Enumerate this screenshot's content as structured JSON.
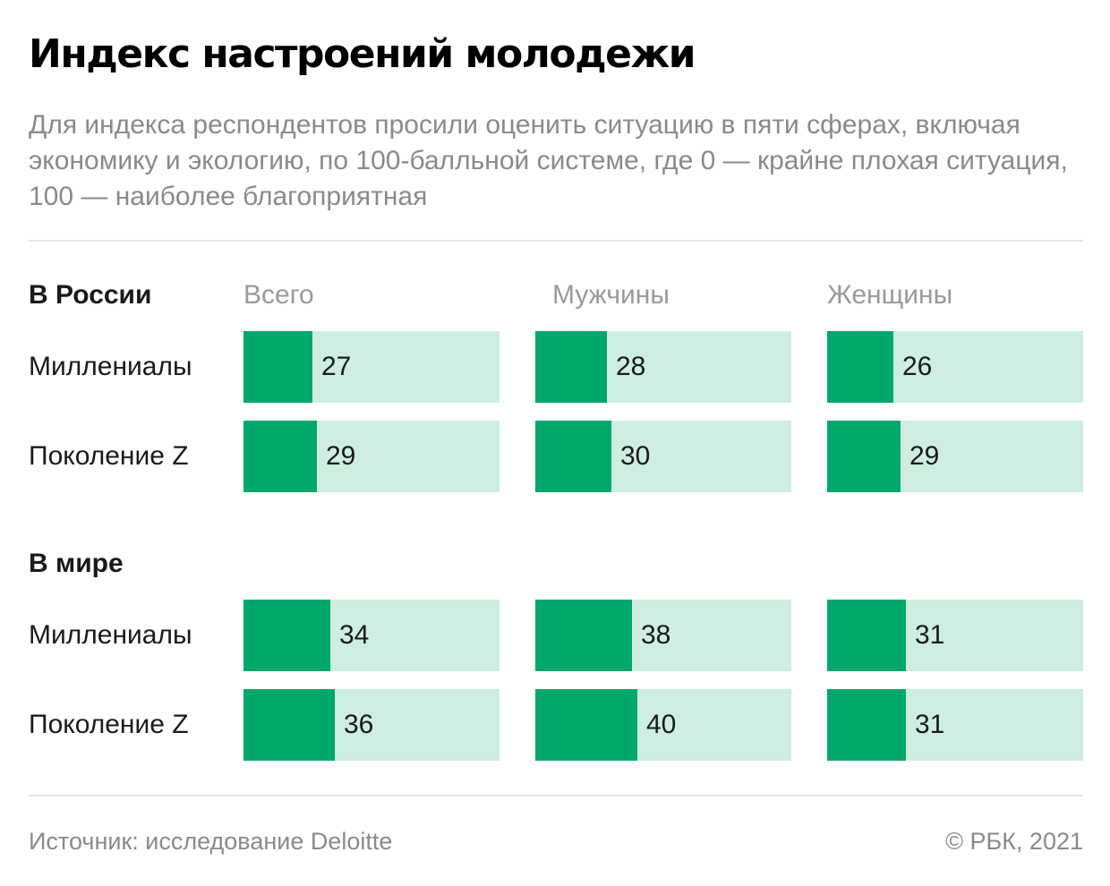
{
  "title": "Индекс настроений молодежи",
  "subtitle": "Для индекса респондентов просили оценить ситуацию в пяти сферах, включая экономику и экологию, по 100-балльной системе, где 0 — крайне плохая ситуация, 100 — наиболее благоприятная",
  "columns": [
    "Всего",
    "Мужчины",
    "Женщины"
  ],
  "colors": {
    "fill": "#00a86b",
    "track": "#cdeee0"
  },
  "chart_data": {
    "type": "bar",
    "title": "Индекс настроений молодежи",
    "scale_max": 100,
    "categories": [
      "Всего",
      "Мужчины",
      "Женщины"
    ],
    "sections": [
      {
        "name": "В России",
        "rows": [
          {
            "label": "Миллениалы",
            "values": [
              27,
              28,
              26
            ]
          },
          {
            "label": "Поколение Z",
            "values": [
              29,
              30,
              29
            ]
          }
        ]
      },
      {
        "name": "В мире",
        "rows": [
          {
            "label": "Миллениалы",
            "values": [
              34,
              38,
              31
            ]
          },
          {
            "label": "Поколение Z",
            "values": [
              36,
              40,
              31
            ]
          }
        ]
      }
    ]
  },
  "footer": {
    "source": "Источник: исследование Deloitte",
    "copyright": "© РБК, 2021"
  }
}
